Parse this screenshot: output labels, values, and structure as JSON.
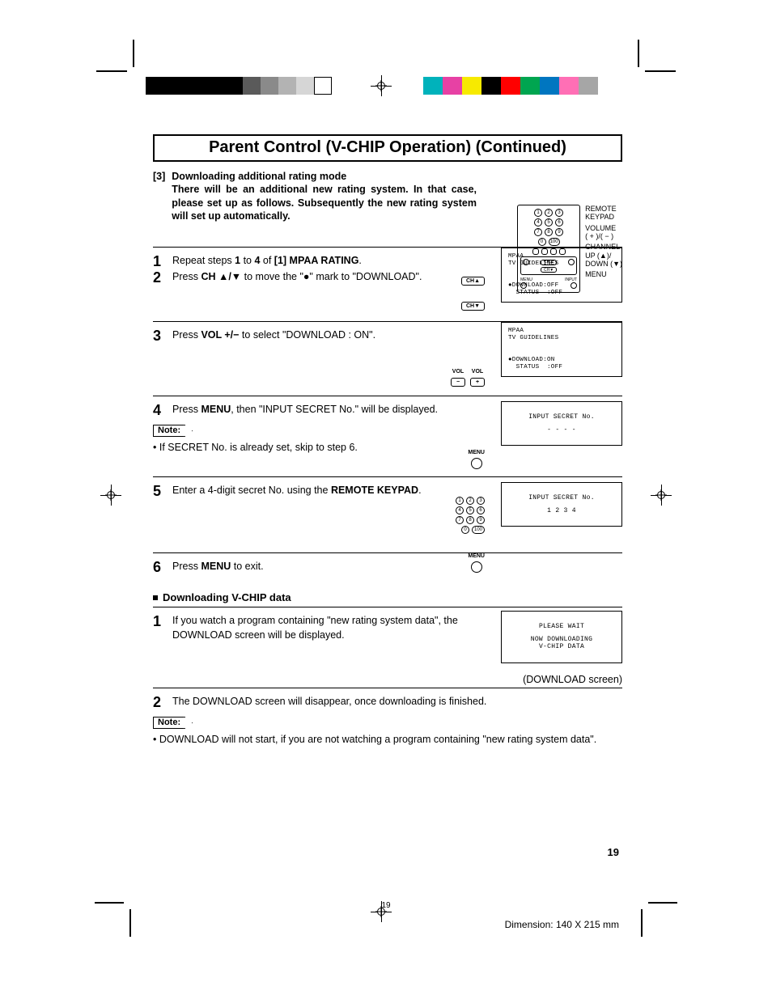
{
  "title": "Parent Control (V-CHIP Operation) (Continued)",
  "intro": {
    "num": "[3]",
    "heading": "Downloading additional rating mode",
    "body": "There will be an additional new rating system. In that case, please set up as follows. Subsequently the new rating system will set up automatically."
  },
  "remote_labels": {
    "l1": "REMOTE",
    "l2": "KEYPAD",
    "l3": "VOLUME",
    "l4": "( + )/( − )",
    "l5": "CHANNEL",
    "l6": "UP (▲)/",
    "l7": "DOWN (▼)",
    "l8": "MENU"
  },
  "step1": {
    "num": "1",
    "text_a": "Repeat steps ",
    "b1": "1",
    "mid1": " to ",
    "b2": "4",
    "mid2": " of ",
    "b3": "[1] MPAA RATING",
    "tail": "."
  },
  "step2": {
    "num": "2",
    "text_a": "Press ",
    "b1": "CH ▲/▼",
    "mid": " to move the \"●\" mark to \"DOWNLOAD\"."
  },
  "screen1": {
    "l1": "MPAA",
    "l2": "TV GUIDELINES",
    "l3": "●DOWNLOAD:OFF",
    "l4": "  STATUS  :OFF"
  },
  "step3": {
    "num": "3",
    "text_a": "Press ",
    "b1": "VOL +/−",
    "tail": " to select \"DOWNLOAD : ON\"."
  },
  "screen2": {
    "l1": "MPAA",
    "l2": "TV GUIDELINES",
    "l3": "●DOWNLOAD:ON",
    "l4": "  STATUS  :OFF"
  },
  "step4": {
    "num": "4",
    "text_a": "Press ",
    "b1": "MENU",
    "tail": ", then \"INPUT SECRET No.\" will be displayed."
  },
  "note1_label": "Note:",
  "note1_text": "If SECRET No. is already set, skip to step 6.",
  "screen3": {
    "l1": "INPUT SECRET No.",
    "l2": "- - - -"
  },
  "step5": {
    "num": "5",
    "text_a": "Enter a 4-digit secret No. using the ",
    "b1": "REMOTE KEYPAD",
    "tail": "."
  },
  "screen4": {
    "l1": "INPUT SECRET No.",
    "l2": "1 2 3 4"
  },
  "step6": {
    "num": "6",
    "text_a": "Press ",
    "b1": "MENU",
    "tail": " to exit."
  },
  "subheading": "Downloading V-CHIP data",
  "dstep1": {
    "num": "1",
    "text": "If you watch a program containing \"new rating system data\", the DOWNLOAD screen will be displayed."
  },
  "screen5": {
    "l1": "PLEASE WAIT",
    "l2": "NOW DOWNLOADING",
    "l3": "V-CHIP DATA"
  },
  "screen5_caption": "(DOWNLOAD screen)",
  "dstep2": {
    "num": "2",
    "text": "The DOWNLOAD screen will disappear, once downloading is finished."
  },
  "note2_label": "Note:",
  "note2_text": "DOWNLOAD will not start, if you are not watching a program containing \"new rating system data\".",
  "page_number": "19",
  "footer_pg": "19",
  "footer_dim": "Dimension: 140  X 215 mm",
  "btn": {
    "ch_up": "CH▲",
    "ch_dn": "CH▼",
    "vol_m": "VOL\n−",
    "vol_p": "VOL\n+",
    "menu": "MENU"
  },
  "keypad": {
    "k1": "1",
    "k2": "2",
    "k3": "3",
    "k4": "4",
    "k5": "5",
    "k6": "6",
    "k7": "7",
    "k8": "8",
    "k9": "9",
    "k0": "0",
    "k100": "100"
  },
  "colors": {
    "top_strip": [
      "#000000",
      "#000000",
      "#000000",
      "#000000",
      "#5a5a5a",
      "#8a8a8a",
      "#b3b3b3",
      "#d6d6d6",
      "#ffffff"
    ],
    "color_strip": [
      "#00b2bb",
      "#e741a4",
      "#f7ea00",
      "#000000",
      "#ff0000",
      "#00a550",
      "#0076c0",
      "#ff6fb5",
      "#a6a6a6"
    ]
  }
}
